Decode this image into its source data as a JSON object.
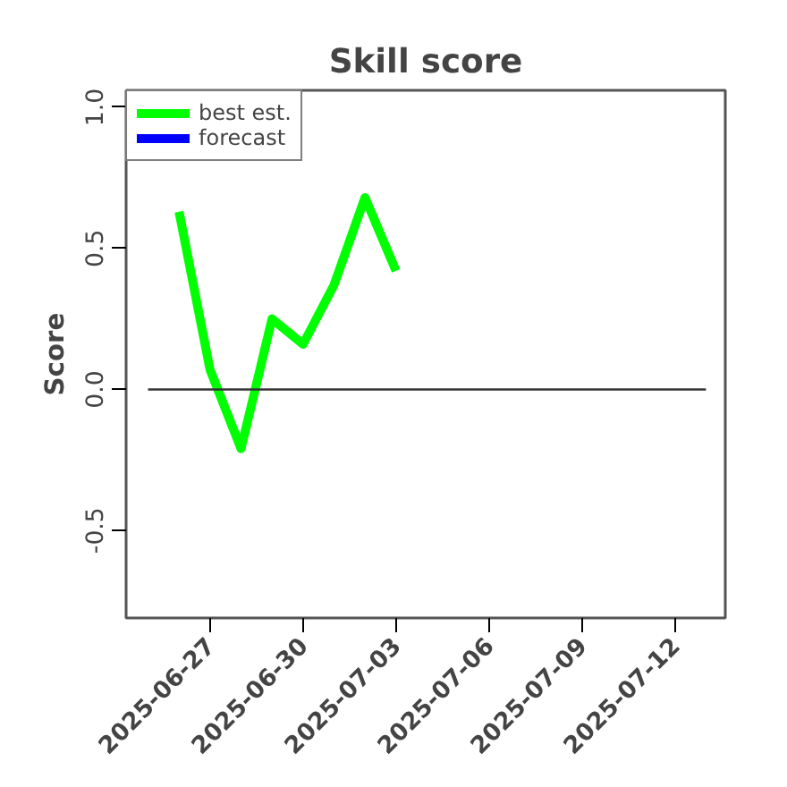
{
  "chart_data": {
    "type": "line",
    "title": "Skill score",
    "ylabel": "Score",
    "x": [
      "2025-06-26",
      "2025-06-27",
      "2025-06-28",
      "2025-06-29",
      "2025-06-30",
      "2025-07-01",
      "2025-07-02",
      "2025-07-03"
    ],
    "series": [
      {
        "name": "best est.",
        "color": "#00ff00",
        "values": [
          0.63,
          0.07,
          -0.21,
          0.25,
          0.16,
          0.37,
          0.68,
          0.42
        ]
      },
      {
        "name": "forecast",
        "color": "#0000ff",
        "values": [
          null,
          null,
          null,
          null,
          null,
          null,
          null,
          null
        ]
      },
      {
        "color": "#333333",
        "x": [
          "2025-06-25",
          "2025-07-13"
        ],
        "values": [
          0,
          0
        ]
      }
    ],
    "xlim": [
      "2025-06-24T07:00",
      "2025-07-13T15:00"
    ],
    "xticks": [
      "2025-06-27",
      "2025-06-30",
      "2025-07-03",
      "2025-07-06",
      "2025-07-09",
      "2025-07-12"
    ],
    "ylim": [
      -0.81,
      1.06
    ],
    "yticks": [
      {
        "value": -0.5,
        "label": "-0.5"
      },
      {
        "value": 0,
        "label": "0.0"
      },
      {
        "value": 0.5,
        "label": "0.5"
      },
      {
        "value": 1,
        "label": "1.0"
      }
    ],
    "legend": "top left",
    "grid": false,
    "line_style": "solid",
    "marker": "none"
  }
}
